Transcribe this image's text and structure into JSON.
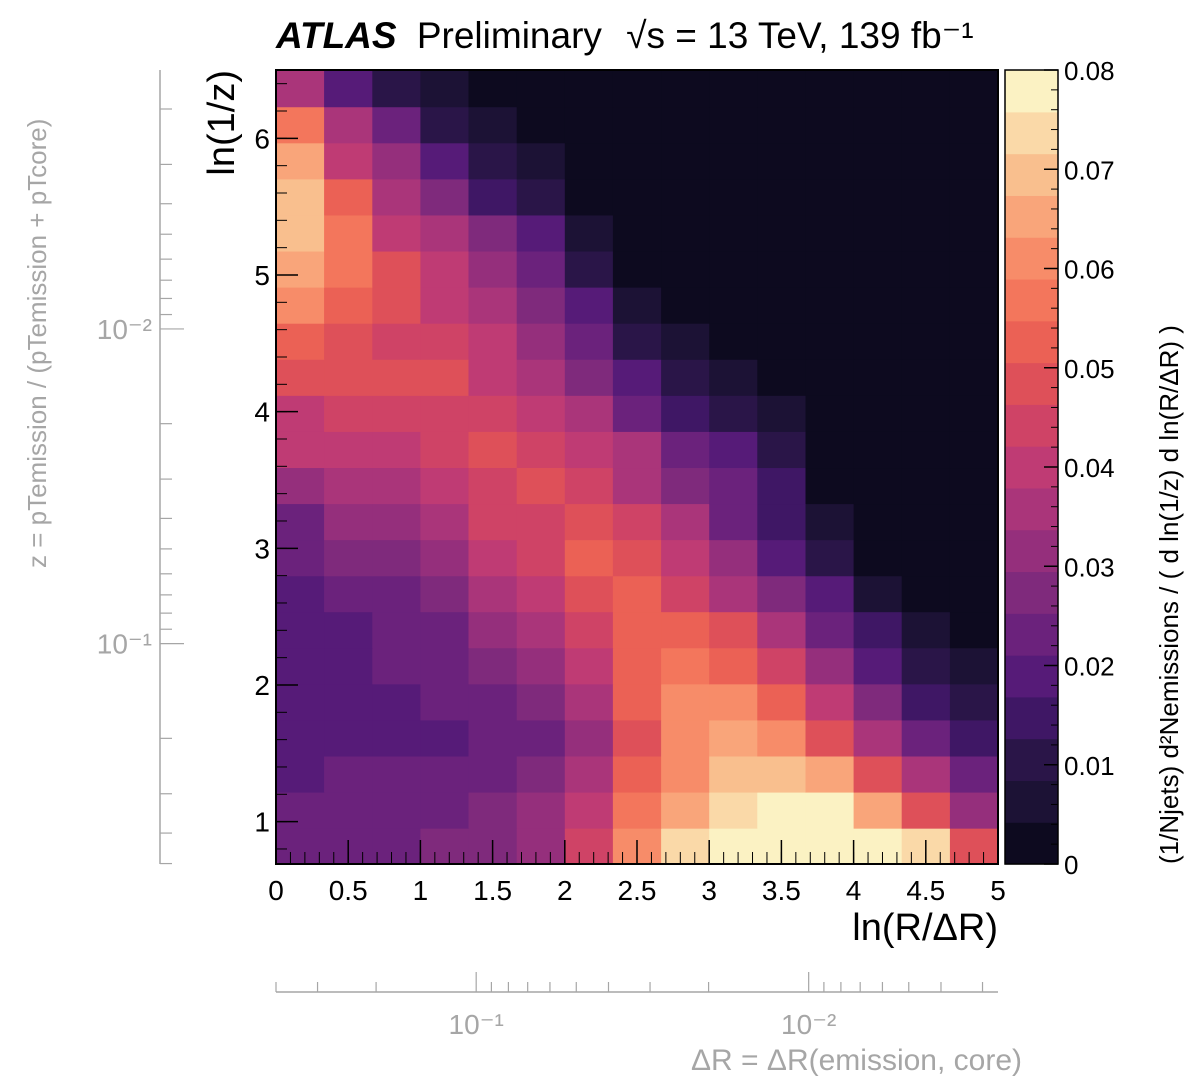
{
  "chart_data": {
    "type": "heatmap",
    "title": {
      "experiment": "ATLAS",
      "status": "Preliminary",
      "energy": "√s = 13 TeV, 139 fb⁻¹"
    },
    "xlabel": "ln(R/ΔR)",
    "ylabel": "ln(1/z)",
    "zlabel": "(1/Njets) d²Nemissions / ( d ln(1/z) d ln(R/ΔR) )",
    "secondary_x_axis_label": "ΔR = ΔR(emission, core)",
    "secondary_y_axis_label": "z = pTemission / (pTemission + pTcore)",
    "xlim": [
      0,
      5
    ],
    "ylim": [
      0.69,
      6.5
    ],
    "zlim": [
      0,
      0.08
    ],
    "x_ticks": [
      "0",
      "0.5",
      "1",
      "1.5",
      "2",
      "2.5",
      "3",
      "3.5",
      "4",
      "4.5",
      "5"
    ],
    "y_ticks": [
      "1",
      "2",
      "3",
      "4",
      "5",
      "6"
    ],
    "z_ticks": [
      "0",
      "0.01",
      "0.02",
      "0.03",
      "0.04",
      "0.05",
      "0.06",
      "0.07",
      "0.08"
    ],
    "secondary_x_ticks": [
      "10⁻¹",
      "10⁻²"
    ],
    "secondary_y_ticks": [
      "10⁻²",
      "10⁻¹"
    ],
    "x_bin_edges": [
      0,
      0.333,
      0.667,
      1.0,
      1.333,
      1.667,
      2.0,
      2.333,
      2.667,
      3.0,
      3.333,
      3.667,
      4.0,
      4.333,
      4.667,
      5.0
    ],
    "y_bin_edges": [
      0.69,
      0.953,
      1.217,
      1.481,
      1.745,
      2.009,
      2.273,
      2.537,
      2.8,
      3.064,
      3.328,
      3.592,
      3.856,
      4.12,
      4.384,
      4.648,
      4.912,
      5.176,
      5.44,
      5.704,
      5.968,
      6.232,
      6.5
    ],
    "z_values_rows_bottom_to_top": [
      [
        0.025,
        0.025,
        0.025,
        0.027,
        0.029,
        0.032,
        0.045,
        0.062,
        0.074,
        0.08,
        0.08,
        0.08,
        0.08,
        0.072,
        0.048
      ],
      [
        0.025,
        0.025,
        0.025,
        0.025,
        0.027,
        0.03,
        0.04,
        0.055,
        0.067,
        0.073,
        0.078,
        0.078,
        0.066,
        0.047,
        0.032
      ],
      [
        0.02,
        0.023,
        0.023,
        0.023,
        0.024,
        0.027,
        0.035,
        0.052,
        0.062,
        0.071,
        0.071,
        0.064,
        0.05,
        0.034,
        0.025
      ],
      [
        0.02,
        0.018,
        0.018,
        0.021,
        0.022,
        0.025,
        0.033,
        0.05,
        0.06,
        0.065,
        0.06,
        0.05,
        0.034,
        0.022,
        0.015
      ],
      [
        0.019,
        0.021,
        0.021,
        0.022,
        0.024,
        0.029,
        0.035,
        0.051,
        0.062,
        0.062,
        0.052,
        0.038,
        0.026,
        0.016,
        0.01
      ],
      [
        0.017,
        0.021,
        0.023,
        0.025,
        0.028,
        0.032,
        0.04,
        0.052,
        0.055,
        0.052,
        0.045,
        0.03,
        0.021,
        0.012,
        0.006
      ],
      [
        0.017,
        0.02,
        0.022,
        0.024,
        0.03,
        0.036,
        0.043,
        0.052,
        0.052,
        0.048,
        0.034,
        0.023,
        0.013,
        0.006,
        0.003
      ],
      [
        0.02,
        0.025,
        0.025,
        0.027,
        0.036,
        0.04,
        0.049,
        0.052,
        0.046,
        0.037,
        0.027,
        0.017,
        0.008,
        0.004,
        0.002
      ],
      [
        0.022,
        0.028,
        0.028,
        0.031,
        0.04,
        0.043,
        0.053,
        0.049,
        0.042,
        0.031,
        0.021,
        0.01,
        0.004,
        0.002,
        0.001
      ],
      [
        0.024,
        0.031,
        0.032,
        0.037,
        0.043,
        0.046,
        0.048,
        0.043,
        0.035,
        0.025,
        0.015,
        0.006,
        0.003,
        0.001,
        0.001
      ],
      [
        0.031,
        0.037,
        0.037,
        0.04,
        0.046,
        0.047,
        0.043,
        0.037,
        0.029,
        0.022,
        0.014,
        0.004,
        0.002,
        0.001,
        0.001
      ],
      [
        0.038,
        0.042,
        0.042,
        0.044,
        0.047,
        0.046,
        0.04,
        0.035,
        0.025,
        0.019,
        0.011,
        0.002,
        0.001,
        0.001,
        0.001
      ],
      [
        0.042,
        0.045,
        0.045,
        0.046,
        0.045,
        0.039,
        0.035,
        0.023,
        0.016,
        0.01,
        0.006,
        0.001,
        0.001,
        0.001,
        0.001
      ],
      [
        0.049,
        0.047,
        0.047,
        0.047,
        0.042,
        0.036,
        0.029,
        0.018,
        0.01,
        0.005,
        0.002,
        0.001,
        0.001,
        0.001,
        0.001
      ],
      [
        0.053,
        0.05,
        0.046,
        0.043,
        0.038,
        0.032,
        0.022,
        0.012,
        0.005,
        0.002,
        0.001,
        0.001,
        0.001,
        0.001,
        0.001
      ],
      [
        0.062,
        0.052,
        0.047,
        0.04,
        0.035,
        0.029,
        0.018,
        0.008,
        0.003,
        0.001,
        0.001,
        0.001,
        0.001,
        0.001,
        0.001
      ],
      [
        0.066,
        0.058,
        0.049,
        0.039,
        0.033,
        0.022,
        0.012,
        0.004,
        0.002,
        0.001,
        0.001,
        0.001,
        0.001,
        0.001,
        0.001
      ],
      [
        0.068,
        0.055,
        0.042,
        0.035,
        0.028,
        0.018,
        0.006,
        0.002,
        0.001,
        0.001,
        0.001,
        0.001,
        0.001,
        0.001,
        0.001
      ],
      [
        0.07,
        0.052,
        0.036,
        0.029,
        0.015,
        0.009,
        0.004,
        0.001,
        0.001,
        0.001,
        0.001,
        0.001,
        0.001,
        0.001,
        0.001
      ],
      [
        0.066,
        0.042,
        0.032,
        0.02,
        0.01,
        0.006,
        0.002,
        0.001,
        0.001,
        0.001,
        0.001,
        0.001,
        0.001,
        0.001,
        0.001
      ],
      [
        0.055,
        0.035,
        0.025,
        0.009,
        0.005,
        0.001,
        0.001,
        0.001,
        0.001,
        0.001,
        0.001,
        0.001,
        0.001,
        0.001,
        0.001
      ],
      [
        0.036,
        0.018,
        0.009,
        0.005,
        0.002,
        0.001,
        0.001,
        0.001,
        0.001,
        0.001,
        0.001,
        0.001,
        0.001,
        0.001,
        0.001
      ]
    ],
    "colormap": [
      "#0d0a1f",
      "#1c1235",
      "#2a1548",
      "#3f1765",
      "#561b78",
      "#6b227c",
      "#7f2a7c",
      "#952f7c",
      "#aa357a",
      "#bf3b74",
      "#cf4366",
      "#de5059",
      "#eb6155",
      "#f3765c",
      "#f78c69",
      "#f9a57a",
      "#f9bf8e",
      "#fad9a8",
      "#fbf2c3"
    ],
    "colors": {
      "secondary_axis": "#a6a6a6",
      "frame": "#000000"
    }
  }
}
